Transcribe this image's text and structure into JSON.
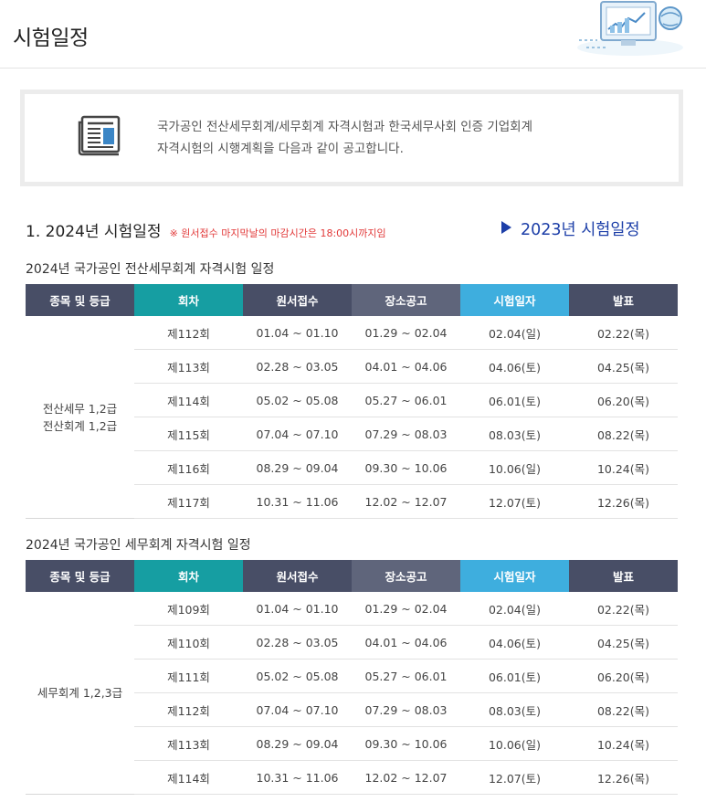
{
  "page": {
    "title": "시험일정"
  },
  "notice": {
    "line1": "국가공인 전산세무회계/세무회계 자격시험과 한국세무사회 인증 기업회계",
    "line2": "자격시험의 시행계획을 다음과 같이 공고합니다."
  },
  "section": {
    "title": "1. 2024년 시험일정",
    "note": "※ 원서접수 마지막날의 마감시간은 18:00시까지임",
    "link_2023": "2023년 시험일정"
  },
  "headers": [
    "종목 및 등급",
    "회차",
    "원서접수",
    "장소공고",
    "시험일자",
    "발표"
  ],
  "colors": {
    "header_dark": "#484e66",
    "header_teal": "#169ea2",
    "header_sky": "#3eaede",
    "red": "#e03030",
    "blue": "#3ea6d8"
  },
  "tables": [
    {
      "title": "2024년 국가공인 전산세무회계 자격시험 일정",
      "grade_lines": [
        "전산세무 1,2급",
        "전산회계 1,2급"
      ],
      "rows": [
        {
          "round": "제112회",
          "apply": "01.04 ~ 01.10",
          "venue": "01.29 ~ 02.04",
          "date": "02.04(일)",
          "date_color": "red",
          "announce": "02.22(목)"
        },
        {
          "round": "제113회",
          "apply": "02.28 ~ 03.05",
          "venue": "04.01 ~ 04.06",
          "date": "04.06(토)",
          "date_color": "blue",
          "announce": "04.25(목)"
        },
        {
          "round": "제114회",
          "apply": "05.02 ~ 05.08",
          "venue": "05.27 ~ 06.01",
          "date": "06.01(토)",
          "date_color": "blue",
          "announce": "06.20(목)"
        },
        {
          "round": "제115회",
          "apply": "07.04 ~ 07.10",
          "venue": "07.29 ~ 08.03",
          "date": "08.03(토)",
          "date_color": "blue",
          "announce": "08.22(목)"
        },
        {
          "round": "제116회",
          "apply": "08.29 ~ 09.04",
          "venue": "09.30 ~ 10.06",
          "date": "10.06(일)",
          "date_color": "red",
          "announce": "10.24(목)"
        },
        {
          "round": "제117회",
          "apply": "10.31 ~ 11.06",
          "venue": "12.02 ~ 12.07",
          "date": "12.07(토)",
          "date_color": "blue",
          "announce": "12.26(목)"
        }
      ]
    },
    {
      "title": "2024년 국가공인 세무회계 자격시험 일정",
      "grade_lines": [
        "세무회계 1,2,3급"
      ],
      "rows": [
        {
          "round": "제109회",
          "apply": "01.04 ~ 01.10",
          "venue": "01.29 ~ 02.04",
          "date": "02.04(일)",
          "date_color": "red",
          "announce": "02.22(목)"
        },
        {
          "round": "제110회",
          "apply": "02.28 ~ 03.05",
          "venue": "04.01 ~ 04.06",
          "date": "04.06(토)",
          "date_color": "blue",
          "announce": "04.25(목)"
        },
        {
          "round": "제111회",
          "apply": "05.02 ~ 05.08",
          "venue": "05.27 ~ 06.01",
          "date": "06.01(토)",
          "date_color": "blue",
          "announce": "06.20(목)"
        },
        {
          "round": "제112회",
          "apply": "07.04 ~ 07.10",
          "venue": "07.29 ~ 08.03",
          "date": "08.03(토)",
          "date_color": "blue",
          "announce": "08.22(목)"
        },
        {
          "round": "제113회",
          "apply": "08.29 ~ 09.04",
          "venue": "09.30 ~ 10.06",
          "date": "10.06(일)",
          "date_color": "red",
          "announce": "10.24(목)"
        },
        {
          "round": "제114회",
          "apply": "10.31 ~ 11.06",
          "venue": "12.02 ~ 12.07",
          "date": "12.07(토)",
          "date_color": "blue",
          "announce": "12.26(목)"
        }
      ]
    }
  ]
}
